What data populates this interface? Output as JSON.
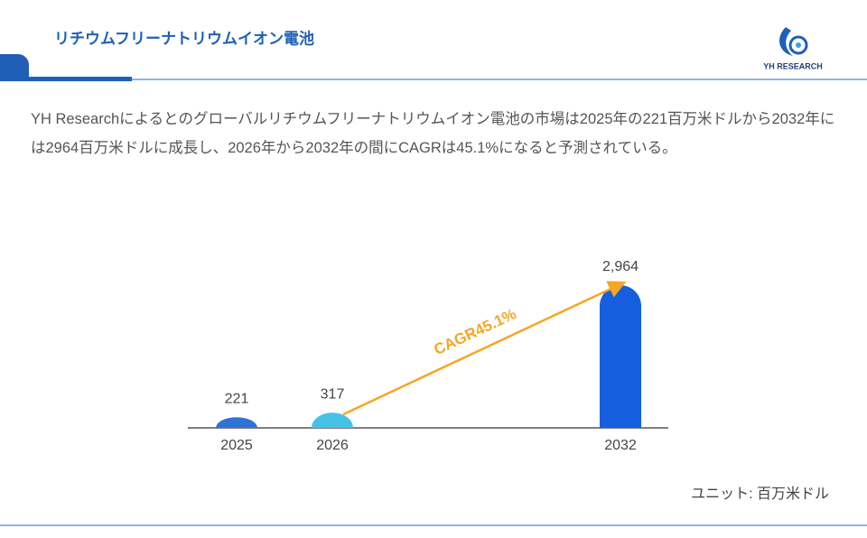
{
  "header": {
    "title": "リチウムフリーナトリウムイオン電池",
    "logo": "YH RESEARCH"
  },
  "description": "YH Researchによるとのグローバルリチウムフリーナトリウムイオン電池の市場は2025年の221百万米ドルから2032年には2964百万米ドルに成長し、2026年から2032年の間にCAGRは45.1%になると予測されている。",
  "chart_data": {
    "type": "bar",
    "categories": [
      "2025",
      "2026",
      "2032"
    ],
    "values": [
      221,
      317,
      2964
    ],
    "value_labels": [
      "221",
      "317",
      "2,964"
    ],
    "colors": [
      "#2f74d3",
      "#45c3e6",
      "#155fdf"
    ],
    "annotation": "CAGR45.1%",
    "annotation_color": "#f5a623",
    "unit_label": "ユニット: 百万米ドル"
  }
}
